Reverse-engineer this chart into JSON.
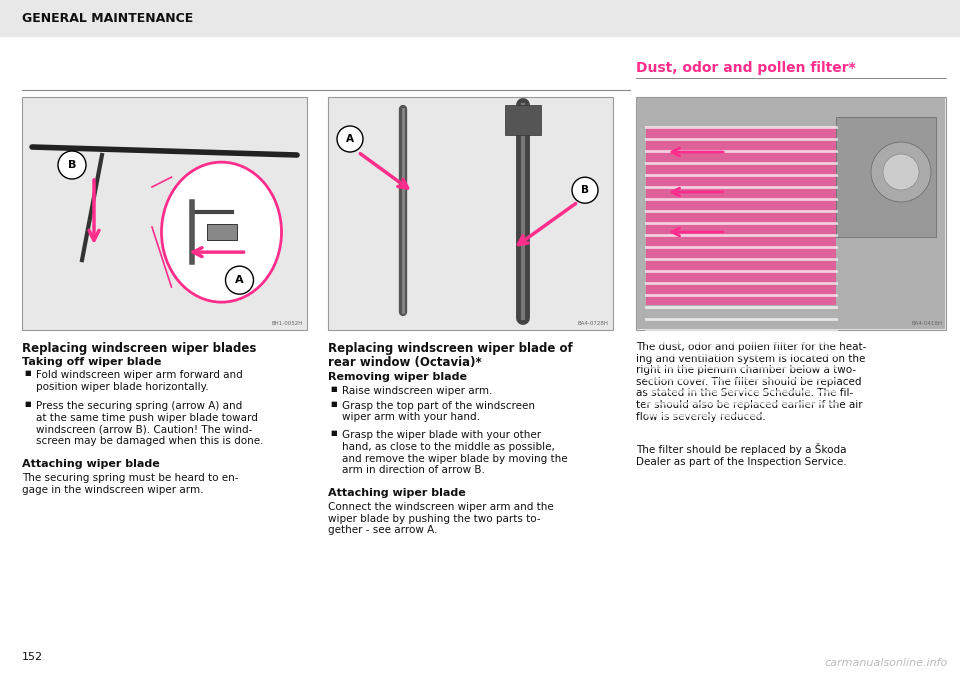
{
  "bg_color": "#ffffff",
  "header_bg": "#e8e8e8",
  "header_text": "GENERAL MAINTENANCE",
  "page_number": "152",
  "watermark": "carmanualsonline.info",
  "pink_color": "#ff2d8c",
  "img_bg_color": "#e8e8e8",
  "img_border_color": "#999999",
  "divider_color": "#888888",
  "image1_code": "BH1-0052H",
  "image2_code": "BA4-0728H",
  "image3_code": "BA4-0418H",
  "col1_title": "Replacing windscreen wiper blades",
  "col1_sub1": "Taking off wiper blade",
  "col1_body1": "Fold windscreen wiper arm forward and\nposition wiper blade horizontally.",
  "col1_bullet2_bold": "Press the securing spring (arrow ",
  "col1_bullet2_A": "A",
  "col1_bullet2_rest": ") and\nat the same time push wiper blade toward\nwindscreen (arrow ",
  "col1_bullet2_B": "B",
  "col1_bullet2_end": "). Caution! The wind-\nscreen may be damaged when this is done.",
  "col1_sub2": "Attaching wiper blade",
  "col1_body2": "The securing spring must be heard to en-\ngage in the windscreen wiper arm.",
  "col2_title1": "Replacing windscreen wiper blade of",
  "col2_title2": "rear window (Octavia)*",
  "col2_sub1": "Removing wiper blade",
  "col2_body1": "Raise windscreen wiper arm.",
  "col2_body2": "Grasp the top part of the windscreen\nwiper arm with your hand.",
  "col2_body3": "Grasp the wiper blade with your other\nhand, as close to the middle as possible,\nand remove the wiper blade by moving the\narm in direction of arrow B.",
  "col2_sub2": "Attaching wiper blade",
  "col2_body4": "Connect the windscreen wiper arm and the\nwiper blade by pushing the two parts to-\ngether - see arrow A.",
  "col3_title": "Dust, odor and pollen filter*",
  "col3_body1": "The dust, odor and pollen filter for the heat-\ning and ventilation system is located on the\nright in the plenum chamber below a two-\nsection cover. The filter should be replaced\nas stated in the Service Schedule. The fil-\nter should also be replaced earlier if the air\nflow is severely reduced.",
  "col3_body2": "The filter should be replaced by a Škoda\nDealer as part of the Inspection Service."
}
